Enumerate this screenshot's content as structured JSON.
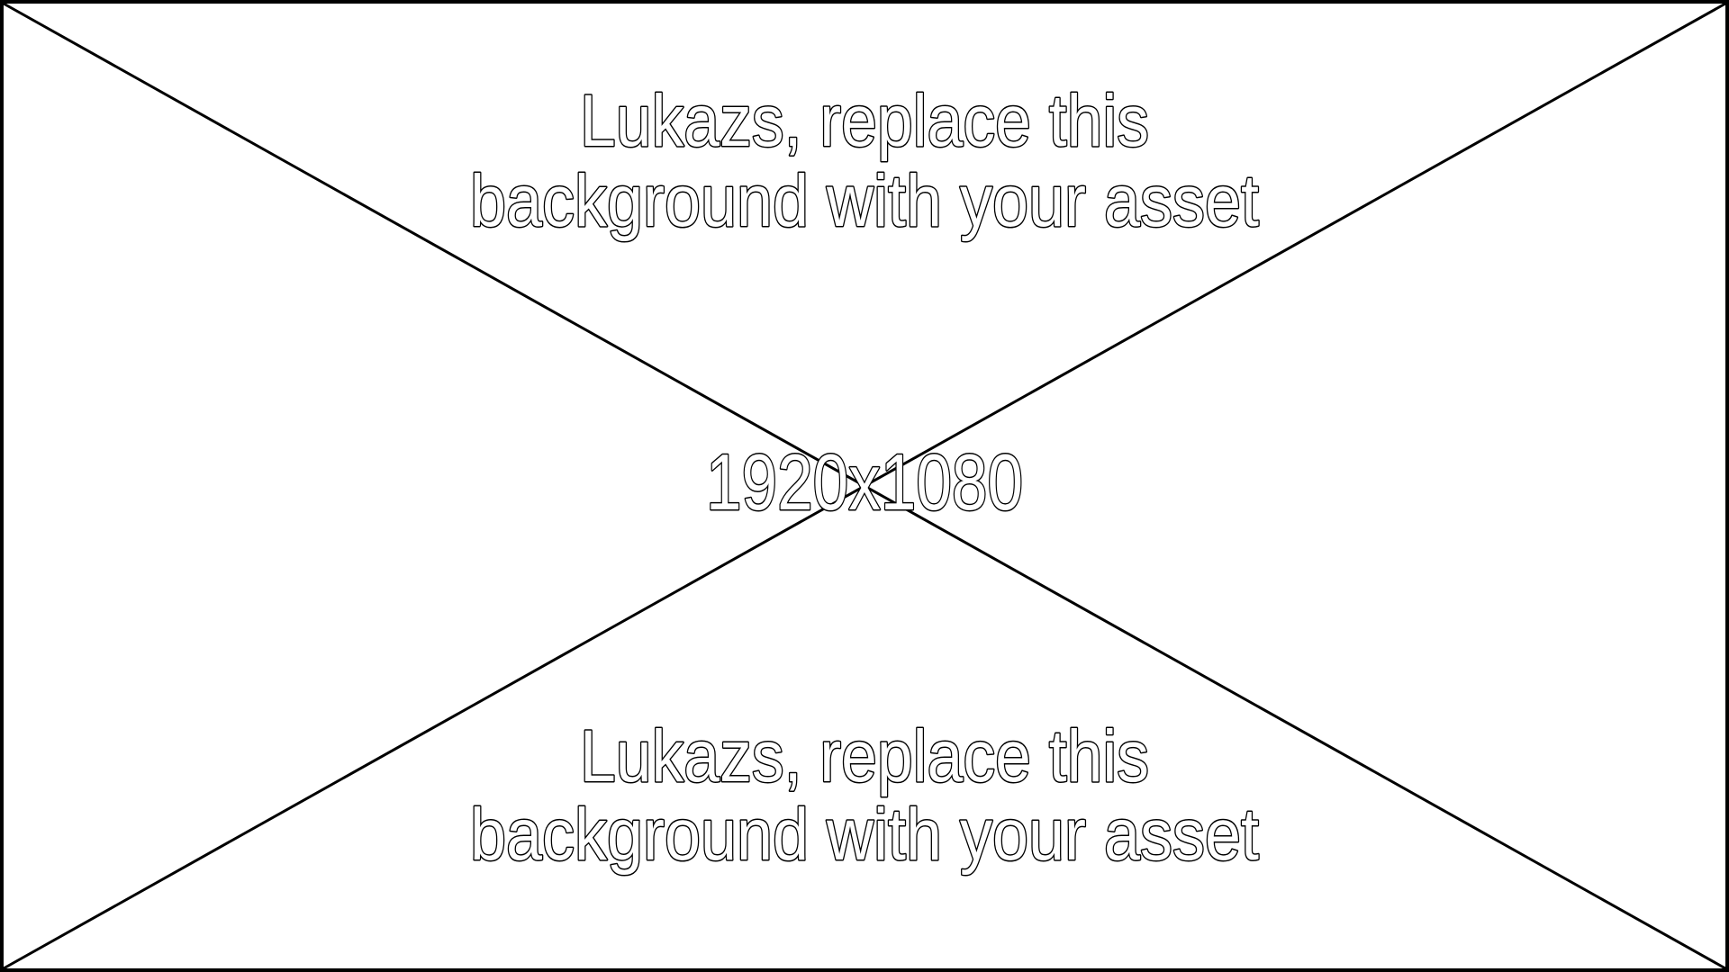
{
  "placeholder": {
    "top_line_1": "Lukazs, replace this",
    "top_line_2": "background with your asset",
    "center_label": "1920x1080",
    "bottom_line_1": "Lukazs, replace this",
    "bottom_line_2": "background with your asset"
  }
}
